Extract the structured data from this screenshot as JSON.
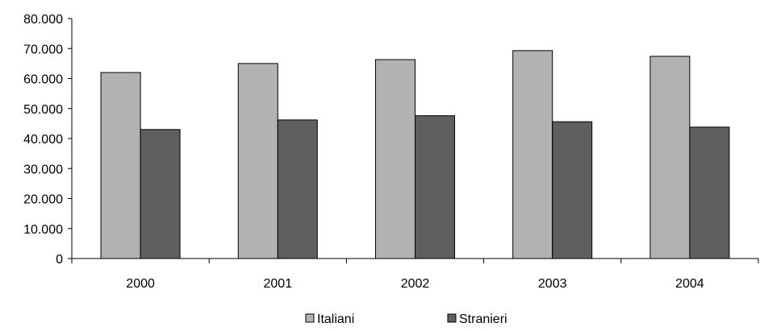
{
  "chart_data": {
    "type": "bar",
    "categories": [
      "2000",
      "2001",
      "2002",
      "2003",
      "2004"
    ],
    "series": [
      {
        "name": "Italiani",
        "color": "#b2b2b2",
        "values": [
          62000,
          65000,
          66300,
          69300,
          67400
        ]
      },
      {
        "name": "Stranieri",
        "color": "#5f5f5f",
        "values": [
          43000,
          46200,
          47600,
          45600,
          43800
        ]
      }
    ],
    "y_tick_labels": [
      "0",
      "10.000",
      "20.000",
      "30.000",
      "40.000",
      "50.000",
      "60.000",
      "70.000",
      "80.000"
    ],
    "ylim": [
      0,
      80000
    ],
    "grid": false,
    "legend_position": "bottom"
  }
}
